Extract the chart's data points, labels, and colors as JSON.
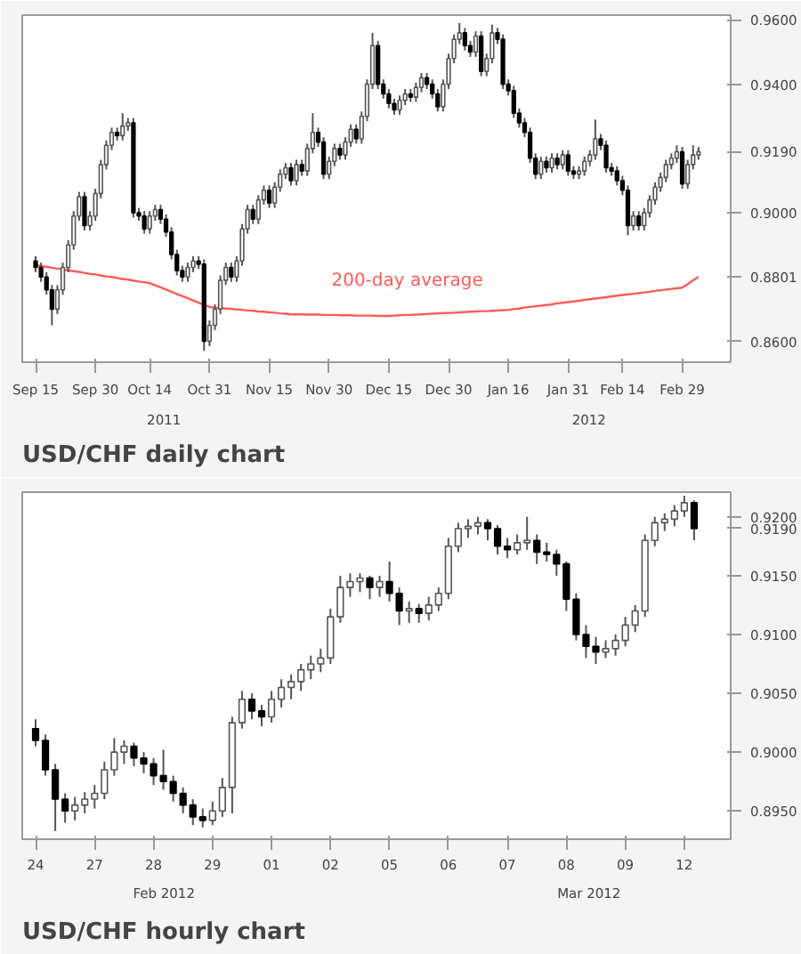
{
  "chart_data": [
    {
      "type": "candlestick",
      "title": "USD/CHF daily chart",
      "categories": [
        "Sep 15",
        null,
        null,
        null,
        null,
        null,
        null,
        null,
        null,
        null,
        null,
        "Sep 30",
        null,
        null,
        null,
        null,
        null,
        null,
        null,
        null,
        null,
        "Oct 14",
        null,
        null,
        null,
        null,
        null,
        null,
        null,
        null,
        null,
        null,
        "Oct 31",
        null,
        null,
        null,
        null,
        null,
        null,
        null,
        null,
        null,
        null,
        "Nov 15",
        null,
        null,
        null,
        null,
        null,
        null,
        null,
        null,
        null,
        null,
        "Nov 30",
        null,
        null,
        null,
        null,
        null,
        null,
        null,
        null,
        null,
        null,
        "Dec 15",
        null,
        null,
        null,
        null,
        null,
        null,
        null,
        null,
        null,
        null,
        "Dec 30",
        null,
        null,
        null,
        null,
        null,
        null,
        null,
        null,
        null,
        null,
        "Jan 16",
        null,
        null,
        null,
        null,
        null,
        null,
        null,
        null,
        null,
        null,
        "Jan 31",
        null,
        null,
        null,
        null,
        null,
        null,
        null,
        null,
        null,
        "Feb 14",
        null,
        null,
        null,
        null,
        null,
        null,
        null,
        null,
        null,
        null,
        "Feb 29",
        null,
        null,
        null
      ],
      "ohlc": [
        [
          0.885,
          0.8865,
          0.8815,
          0.883
        ],
        [
          0.883,
          0.8845,
          0.8785,
          0.88
        ],
        [
          0.88,
          0.8815,
          0.8745,
          0.876
        ],
        [
          0.876,
          0.8775,
          0.865,
          0.87
        ],
        [
          0.87,
          0.8775,
          0.8685,
          0.876
        ],
        [
          0.876,
          0.8845,
          0.8745,
          0.883
        ],
        [
          0.883,
          0.8915,
          0.8815,
          0.89
        ],
        [
          0.89,
          0.9005,
          0.8885,
          0.899
        ],
        [
          0.899,
          0.9065,
          0.8975,
          0.905
        ],
        [
          0.905,
          0.9065,
          0.8945,
          0.896
        ],
        [
          0.896,
          0.9005,
          0.8945,
          0.899
        ],
        [
          0.899,
          0.9075,
          0.8975,
          0.906
        ],
        [
          0.906,
          0.9165,
          0.9045,
          0.915
        ],
        [
          0.915,
          0.9225,
          0.9135,
          0.921
        ],
        [
          0.921,
          0.9265,
          0.9195,
          0.925
        ],
        [
          0.925,
          0.9265,
          0.9225,
          0.924
        ],
        [
          0.924,
          0.931,
          0.9225,
          0.927
        ],
        [
          0.927,
          0.9295,
          0.9255,
          0.928
        ],
        [
          0.928,
          0.9295,
          0.8985,
          0.9
        ],
        [
          0.9,
          0.9015,
          0.8975,
          0.899
        ],
        [
          0.899,
          0.9005,
          0.8935,
          0.895
        ],
        [
          0.895,
          0.9005,
          0.8935,
          0.899
        ],
        [
          0.899,
          0.9025,
          0.8975,
          0.901
        ],
        [
          0.901,
          0.9025,
          0.8965,
          0.898
        ],
        [
          0.898,
          0.8995,
          0.8925,
          0.894
        ],
        [
          0.894,
          0.8955,
          0.8855,
          0.887
        ],
        [
          0.887,
          0.8885,
          0.8805,
          0.882
        ],
        [
          0.882,
          0.8835,
          0.8785,
          0.88
        ],
        [
          0.88,
          0.8845,
          0.8785,
          0.883
        ],
        [
          0.883,
          0.8865,
          0.8815,
          0.885
        ],
        [
          0.885,
          0.8865,
          0.8825,
          0.884
        ],
        [
          0.884,
          0.8855,
          0.857,
          0.86
        ],
        [
          0.86,
          0.8665,
          0.8585,
          0.865
        ],
        [
          0.865,
          0.8715,
          0.8635,
          0.87
        ],
        [
          0.87,
          0.8805,
          0.8685,
          0.879
        ],
        [
          0.879,
          0.8845,
          0.8775,
          0.883
        ],
        [
          0.883,
          0.8845,
          0.8785,
          0.88
        ],
        [
          0.88,
          0.8865,
          0.8785,
          0.885
        ],
        [
          0.885,
          0.8965,
          0.8835,
          0.895
        ],
        [
          0.895,
          0.9025,
          0.8935,
          0.901
        ],
        [
          0.901,
          0.9025,
          0.8965,
          0.898
        ],
        [
          0.898,
          0.9055,
          0.8965,
          0.904
        ],
        [
          0.904,
          0.9085,
          0.9025,
          0.907
        ],
        [
          0.907,
          0.9085,
          0.9015,
          0.903
        ],
        [
          0.903,
          0.9095,
          0.9015,
          0.908
        ],
        [
          0.908,
          0.9135,
          0.9065,
          0.912
        ],
        [
          0.912,
          0.9155,
          0.9105,
          0.914
        ],
        [
          0.914,
          0.9155,
          0.9085,
          0.91
        ],
        [
          0.91,
          0.9165,
          0.9085,
          0.915
        ],
        [
          0.915,
          0.9165,
          0.9115,
          0.913
        ],
        [
          0.913,
          0.9215,
          0.9115,
          0.92
        ],
        [
          0.92,
          0.931,
          0.9185,
          0.925
        ],
        [
          0.925,
          0.9265,
          0.9205,
          0.922
        ],
        [
          0.922,
          0.9235,
          0.9105,
          0.912
        ],
        [
          0.912,
          0.9175,
          0.9105,
          0.916
        ],
        [
          0.916,
          0.9215,
          0.9145,
          0.92
        ],
        [
          0.92,
          0.9215,
          0.9165,
          0.918
        ],
        [
          0.918,
          0.9235,
          0.9165,
          0.922
        ],
        [
          0.922,
          0.9275,
          0.9205,
          0.926
        ],
        [
          0.926,
          0.9275,
          0.9215,
          0.923
        ],
        [
          0.923,
          0.9315,
          0.9215,
          0.93
        ],
        [
          0.93,
          0.9415,
          0.9285,
          0.94
        ],
        [
          0.94,
          0.956,
          0.9385,
          0.952
        ],
        [
          0.952,
          0.9535,
          0.9385,
          0.94
        ],
        [
          0.94,
          0.9415,
          0.9355,
          0.937
        ],
        [
          0.937,
          0.9385,
          0.9325,
          0.934
        ],
        [
          0.934,
          0.9355,
          0.9305,
          0.932
        ],
        [
          0.932,
          0.9365,
          0.9305,
          0.935
        ],
        [
          0.935,
          0.9385,
          0.9335,
          0.937
        ],
        [
          0.937,
          0.9385,
          0.9345,
          0.936
        ],
        [
          0.936,
          0.9405,
          0.9345,
          0.939
        ],
        [
          0.939,
          0.9435,
          0.9375,
          0.942
        ],
        [
          0.942,
          0.9435,
          0.9385,
          0.94
        ],
        [
          0.94,
          0.9415,
          0.9355,
          0.937
        ],
        [
          0.937,
          0.9385,
          0.9315,
          0.933
        ],
        [
          0.933,
          0.9415,
          0.9315,
          0.94
        ],
        [
          0.94,
          0.9495,
          0.9385,
          0.948
        ],
        [
          0.948,
          0.9555,
          0.9465,
          0.954
        ],
        [
          0.954,
          0.959,
          0.9525,
          0.956
        ],
        [
          0.956,
          0.9575,
          0.9505,
          0.952
        ],
        [
          0.952,
          0.9535,
          0.9485,
          0.95
        ],
        [
          0.95,
          0.9565,
          0.9485,
          0.955
        ],
        [
          0.955,
          0.9565,
          0.9425,
          0.944
        ],
        [
          0.944,
          0.9495,
          0.9425,
          0.948
        ],
        [
          0.948,
          0.9585,
          0.9465,
          0.956
        ],
        [
          0.956,
          0.9575,
          0.9525,
          0.954
        ],
        [
          0.954,
          0.9555,
          0.9385,
          0.94
        ],
        [
          0.94,
          0.9415,
          0.9365,
          0.938
        ],
        [
          0.938,
          0.9395,
          0.9295,
          0.931
        ],
        [
          0.931,
          0.9325,
          0.9265,
          0.928
        ],
        [
          0.928,
          0.9295,
          0.9235,
          0.925
        ],
        [
          0.925,
          0.9265,
          0.9155,
          0.917
        ],
        [
          0.917,
          0.9185,
          0.9105,
          0.912
        ],
        [
          0.912,
          0.9175,
          0.9105,
          0.916
        ],
        [
          0.916,
          0.9175,
          0.9125,
          0.914
        ],
        [
          0.914,
          0.9185,
          0.9125,
          0.917
        ],
        [
          0.917,
          0.9185,
          0.9135,
          0.915
        ],
        [
          0.915,
          0.9195,
          0.9135,
          0.918
        ],
        [
          0.918,
          0.9195,
          0.9115,
          0.913
        ],
        [
          0.913,
          0.9145,
          0.9105,
          0.912
        ],
        [
          0.912,
          0.9145,
          0.9105,
          0.913
        ],
        [
          0.913,
          0.9175,
          0.9115,
          0.916
        ],
        [
          0.916,
          0.9195,
          0.9145,
          0.918
        ],
        [
          0.918,
          0.929,
          0.9165,
          0.923
        ],
        [
          0.923,
          0.9245,
          0.9195,
          0.921
        ],
        [
          0.921,
          0.9225,
          0.9125,
          0.914
        ],
        [
          0.914,
          0.9155,
          0.9115,
          0.913
        ],
        [
          0.913,
          0.9145,
          0.9085,
          0.91
        ],
        [
          0.91,
          0.9115,
          0.9055,
          0.907
        ],
        [
          0.907,
          0.9085,
          0.893,
          0.896
        ],
        [
          0.896,
          0.9005,
          0.8945,
          0.899
        ],
        [
          0.899,
          0.9005,
          0.8945,
          0.896
        ],
        [
          0.896,
          0.9015,
          0.8945,
          0.9
        ],
        [
          0.9,
          0.9055,
          0.8985,
          0.904
        ],
        [
          0.904,
          0.9095,
          0.9025,
          0.908
        ],
        [
          0.908,
          0.9125,
          0.9065,
          0.911
        ],
        [
          0.911,
          0.9165,
          0.9095,
          0.915
        ],
        [
          0.915,
          0.9185,
          0.9135,
          0.917
        ],
        [
          0.917,
          0.921,
          0.9155,
          0.919
        ],
        [
          0.919,
          0.9205,
          0.9075,
          0.909
        ],
        [
          0.909,
          0.9165,
          0.9075,
          0.915
        ],
        [
          0.915,
          0.921,
          0.9135,
          0.918
        ],
        [
          0.918,
          0.9205,
          0.9165,
          0.919
        ]
      ],
      "series": [
        {
          "type": "line",
          "name": "200-day average",
          "color": "#ff5a5a",
          "values": [
            0.8837,
            0.8834,
            0.8832,
            0.8829,
            0.8826,
            0.8824,
            0.8821,
            0.8818,
            0.8816,
            0.8813,
            0.881,
            0.8808,
            0.8805,
            0.8802,
            0.88,
            0.8797,
            0.8794,
            0.8792,
            0.8789,
            0.8786,
            0.8784,
            0.8781,
            0.8774,
            0.8768,
            0.8761,
            0.8754,
            0.8747,
            0.8741,
            0.8734,
            0.8727,
            0.872,
            0.8714,
            0.8707,
            0.8705,
            0.8704,
            0.8702,
            0.8701,
            0.8699,
            0.8698,
            0.8696,
            0.8695,
            0.8693,
            0.8692,
            0.869,
            0.8689,
            0.8687,
            0.8686,
            0.8684,
            0.8684,
            0.8684,
            0.8683,
            0.8683,
            0.8683,
            0.8682,
            0.8682,
            0.8682,
            0.8681,
            0.8681,
            0.8681,
            0.868,
            0.868,
            0.868,
            0.868,
            0.8679,
            0.8679,
            0.8679,
            0.868,
            0.8681,
            0.8682,
            0.8682,
            0.8683,
            0.8684,
            0.8685,
            0.8686,
            0.8687,
            0.8688,
            0.8688,
            0.8689,
            0.869,
            0.8691,
            0.8692,
            0.8693,
            0.8694,
            0.8694,
            0.8695,
            0.8696,
            0.8697,
            0.8698,
            0.87,
            0.8702,
            0.8705,
            0.8707,
            0.8709,
            0.8711,
            0.8713,
            0.8715,
            0.8718,
            0.872,
            0.8722,
            0.8724,
            0.8726,
            0.8729,
            0.8731,
            0.8733,
            0.8735,
            0.8737,
            0.874,
            0.8742,
            0.8744,
            0.8746,
            0.8748,
            0.875,
            0.8752,
            0.8754,
            0.8757,
            0.8759,
            0.8761,
            0.8763,
            0.8765,
            0.8767,
            0.8778,
            0.879,
            0.8801
          ]
        }
      ],
      "ylim": [
        0.8535,
        0.9615
      ],
      "yticks": [
        {
          "value": 0.86,
          "label": "0.8600"
        },
        {
          "value": 0.8801,
          "label": "0.8801"
        },
        {
          "value": 0.9,
          "label": "0.9000"
        },
        {
          "value": 0.919,
          "label": "0.9190"
        },
        {
          "value": 0.94,
          "label": "0.9400"
        },
        {
          "value": 0.96,
          "label": "0.9600"
        }
      ],
      "annotations": [
        "2011",
        "2012"
      ]
    },
    {
      "type": "candlestick",
      "title": "USD/CHF hourly chart",
      "categories": [
        "24",
        null,
        null,
        null,
        null,
        null,
        "27",
        null,
        null,
        null,
        null,
        null,
        "28",
        null,
        null,
        null,
        null,
        null,
        "29",
        null,
        null,
        null,
        null,
        null,
        "01",
        null,
        null,
        null,
        null,
        null,
        "02",
        null,
        null,
        null,
        null,
        null,
        "05",
        null,
        null,
        null,
        null,
        null,
        "06",
        null,
        null,
        null,
        null,
        null,
        "07",
        null,
        null,
        null,
        null,
        null,
        "08",
        null,
        null,
        null,
        null,
        null,
        "09",
        null,
        null,
        null,
        null,
        null,
        "12",
        null
      ],
      "ohlc": [
        [
          0.902,
          0.9028,
          0.9005,
          0.901
        ],
        [
          0.901,
          0.9015,
          0.898,
          0.8985
        ],
        [
          0.8985,
          0.899,
          0.8933,
          0.896
        ],
        [
          0.896,
          0.8965,
          0.894,
          0.895
        ],
        [
          0.895,
          0.8962,
          0.8942,
          0.8955
        ],
        [
          0.8955,
          0.8966,
          0.8948,
          0.896
        ],
        [
          0.896,
          0.8972,
          0.8952,
          0.8965
        ],
        [
          0.8965,
          0.8992,
          0.896,
          0.8985
        ],
        [
          0.8985,
          0.9012,
          0.898,
          0.9
        ],
        [
          0.9,
          0.901,
          0.899,
          0.9005
        ],
        [
          0.9005,
          0.9008,
          0.8988,
          0.8995
        ],
        [
          0.8995,
          0.9,
          0.8982,
          0.899
        ],
        [
          0.899,
          0.8995,
          0.8972,
          0.898
        ],
        [
          0.898,
          0.9002,
          0.8968,
          0.8975
        ],
        [
          0.8975,
          0.898,
          0.8958,
          0.8965
        ],
        [
          0.8965,
          0.897,
          0.8948,
          0.8955
        ],
        [
          0.8955,
          0.896,
          0.8938,
          0.8945
        ],
        [
          0.8945,
          0.8952,
          0.8936,
          0.8942
        ],
        [
          0.8942,
          0.8958,
          0.8938,
          0.895
        ],
        [
          0.895,
          0.8978,
          0.8945,
          0.897
        ],
        [
          0.897,
          0.903,
          0.8948,
          0.9025
        ],
        [
          0.9025,
          0.9052,
          0.902,
          0.9045
        ],
        [
          0.9045,
          0.905,
          0.9028,
          0.9035
        ],
        [
          0.9035,
          0.904,
          0.9022,
          0.903
        ],
        [
          0.903,
          0.9052,
          0.9025,
          0.9045
        ],
        [
          0.9045,
          0.9062,
          0.9038,
          0.9055
        ],
        [
          0.9055,
          0.9066,
          0.9045,
          0.906
        ],
        [
          0.906,
          0.9075,
          0.9052,
          0.907
        ],
        [
          0.907,
          0.9082,
          0.9062,
          0.9075
        ],
        [
          0.9075,
          0.9088,
          0.9068,
          0.908
        ],
        [
          0.908,
          0.9122,
          0.9075,
          0.9115
        ],
        [
          0.9115,
          0.915,
          0.911,
          0.914
        ],
        [
          0.914,
          0.9152,
          0.9132,
          0.9145
        ],
        [
          0.9145,
          0.9152,
          0.9136,
          0.9148
        ],
        [
          0.9148,
          0.915,
          0.913,
          0.914
        ],
        [
          0.914,
          0.915,
          0.9132,
          0.9145
        ],
        [
          0.9145,
          0.9162,
          0.9128,
          0.9135
        ],
        [
          0.9135,
          0.914,
          0.9108,
          0.912
        ],
        [
          0.912,
          0.9128,
          0.911,
          0.9122
        ],
        [
          0.9122,
          0.9126,
          0.911,
          0.9118
        ],
        [
          0.9118,
          0.9132,
          0.9112,
          0.9125
        ],
        [
          0.9125,
          0.914,
          0.912,
          0.9135
        ],
        [
          0.9135,
          0.9182,
          0.913,
          0.9175
        ],
        [
          0.9175,
          0.9195,
          0.917,
          0.919
        ],
        [
          0.919,
          0.9198,
          0.9182,
          0.9192
        ],
        [
          0.9192,
          0.92,
          0.9185,
          0.9195
        ],
        [
          0.9195,
          0.9198,
          0.918,
          0.919
        ],
        [
          0.919,
          0.9193,
          0.9168,
          0.9175
        ],
        [
          0.9175,
          0.9182,
          0.9165,
          0.9172
        ],
        [
          0.9172,
          0.9185,
          0.9168,
          0.9178
        ],
        [
          0.9178,
          0.92,
          0.9172,
          0.918
        ],
        [
          0.918,
          0.9185,
          0.916,
          0.917
        ],
        [
          0.917,
          0.9178,
          0.9162,
          0.9168
        ],
        [
          0.9168,
          0.9172,
          0.915,
          0.916
        ],
        [
          0.916,
          0.9162,
          0.912,
          0.913
        ],
        [
          0.913,
          0.9135,
          0.9095,
          0.91
        ],
        [
          0.91,
          0.9108,
          0.908,
          0.909
        ],
        [
          0.909,
          0.9098,
          0.9075,
          0.9085
        ],
        [
          0.9085,
          0.9095,
          0.908,
          0.9088
        ],
        [
          0.9088,
          0.91,
          0.9082,
          0.9095
        ],
        [
          0.9095,
          0.9115,
          0.909,
          0.9108
        ],
        [
          0.9108,
          0.9125,
          0.9102,
          0.912
        ],
        [
          0.912,
          0.9185,
          0.9115,
          0.918
        ],
        [
          0.918,
          0.92,
          0.9175,
          0.9195
        ],
        [
          0.9195,
          0.9203,
          0.9188,
          0.9198
        ],
        [
          0.9198,
          0.921,
          0.9192,
          0.9205
        ],
        [
          0.9205,
          0.9218,
          0.92,
          0.9212
        ],
        [
          0.9212,
          0.9214,
          0.918,
          0.919
        ]
      ],
      "ylim": [
        0.8926,
        0.9221
      ],
      "yticks": [
        {
          "value": 0.895,
          "label": "0.8950"
        },
        {
          "value": 0.9,
          "label": "0.9000"
        },
        {
          "value": 0.905,
          "label": "0.9050"
        },
        {
          "value": 0.91,
          "label": "0.9100"
        },
        {
          "value": 0.915,
          "label": "0.9150"
        },
        {
          "value": 0.919,
          "label": "0.9190"
        },
        {
          "value": 0.92,
          "label": "0.9200"
        }
      ],
      "annotations": [
        "Feb 2012",
        "Mar 2012"
      ]
    }
  ]
}
